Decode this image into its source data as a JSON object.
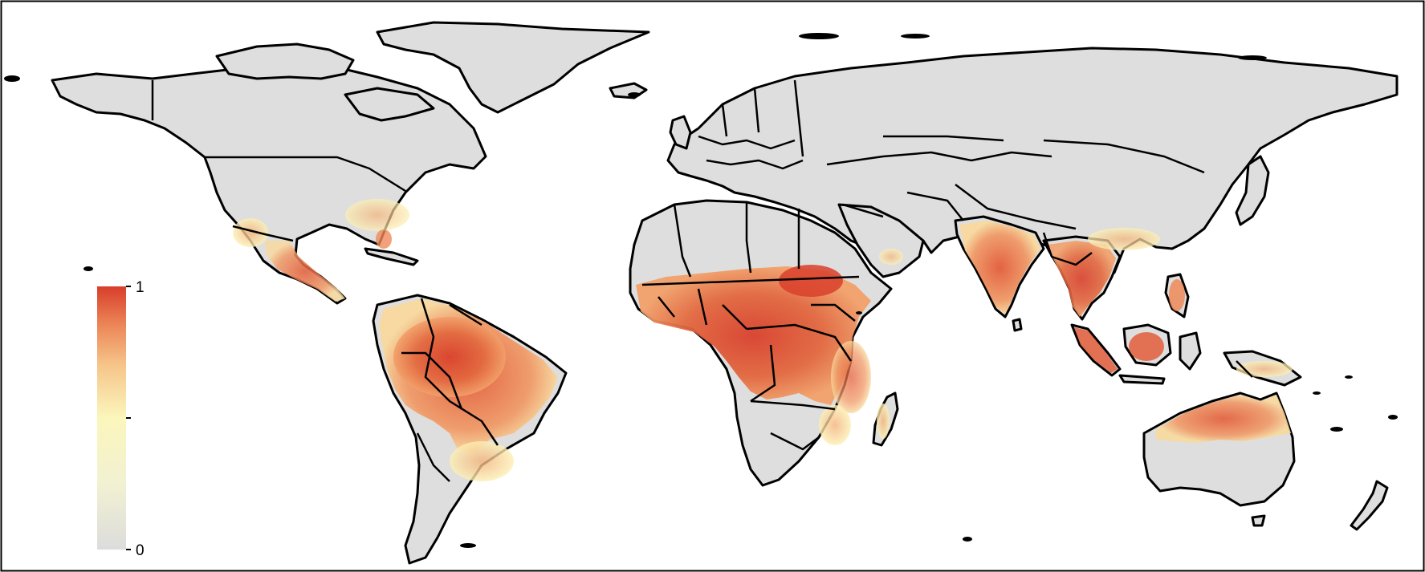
{
  "legend": {
    "max_label": "1",
    "min_label": "0",
    "colors": [
      "#dcdcdc",
      "#fbf6bc",
      "#f6c58a",
      "#ec8758",
      "#d83e2b"
    ]
  },
  "colors": {
    "land": "#dedede",
    "border": "#000000",
    "background": "#ffffff",
    "high": "#d9402c",
    "mid": "#ef8a5a",
    "low": "#fdf3b5"
  }
}
